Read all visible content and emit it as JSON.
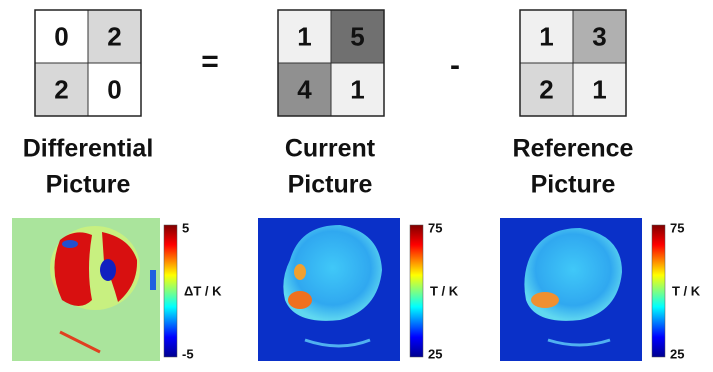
{
  "panels": [
    {
      "matrix": [
        [
          "0",
          "2"
        ],
        [
          "2",
          "0"
        ]
      ],
      "title": [
        "Differential",
        "Picture"
      ],
      "colorbar": {
        "max": "5",
        "unit": "ΔT / K",
        "min": "-5"
      }
    },
    {
      "matrix": [
        [
          "1",
          "5"
        ],
        [
          "4",
          "1"
        ]
      ],
      "title": [
        "Current",
        "Picture"
      ],
      "colorbar": {
        "max": "75",
        "unit": "T / K",
        "min": "25"
      }
    },
    {
      "matrix": [
        [
          "1",
          "3"
        ],
        [
          "2",
          "1"
        ]
      ],
      "title": [
        "Reference",
        "Picture"
      ],
      "colorbar": {
        "max": "75",
        "unit": "T / K",
        "min": "25"
      }
    }
  ],
  "operators": [
    "=",
    "-"
  ]
}
